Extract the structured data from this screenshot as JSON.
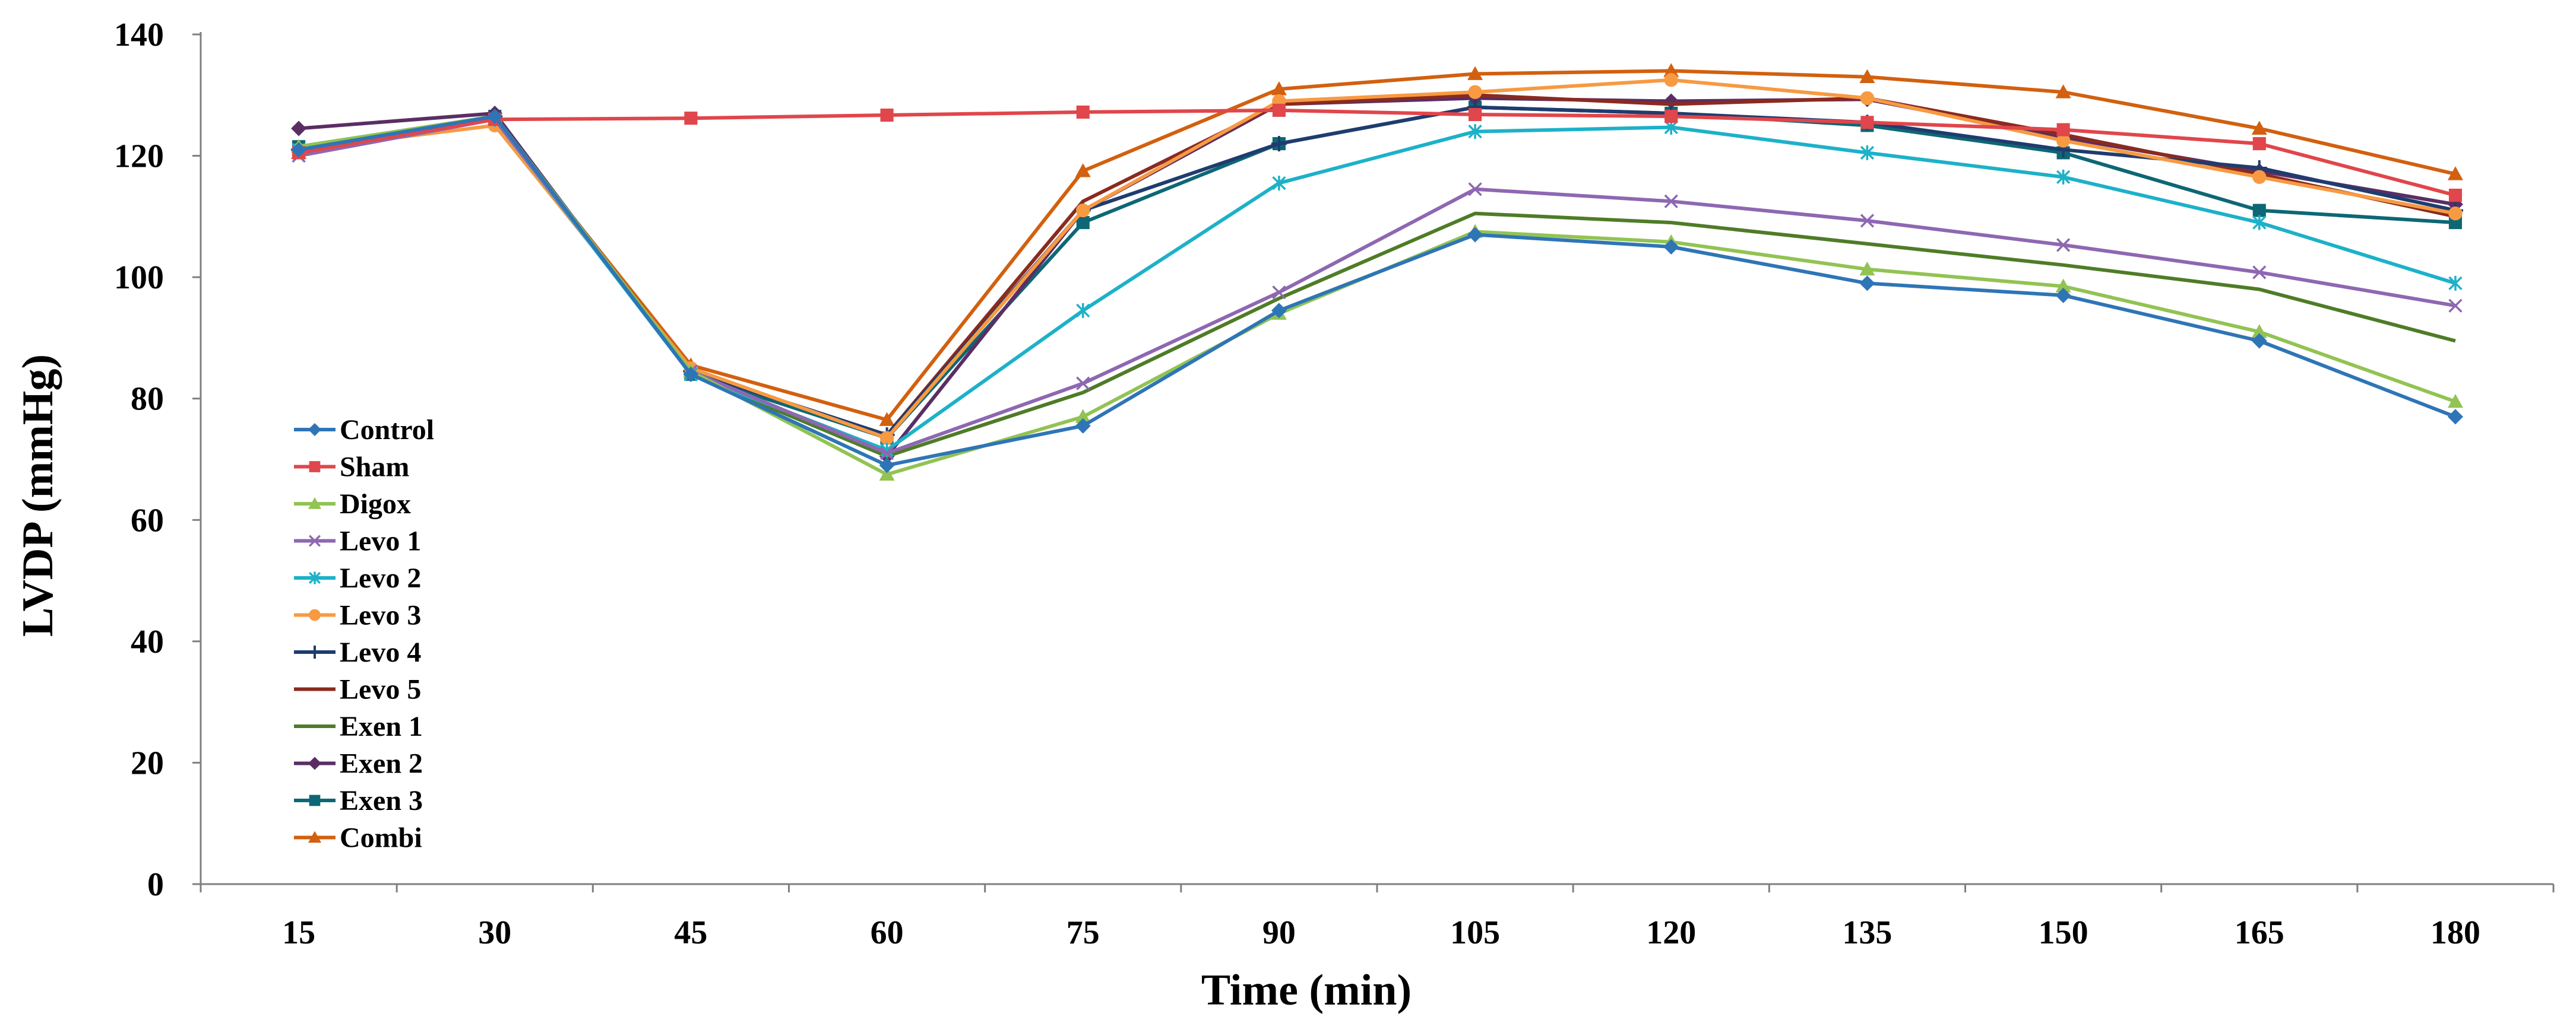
{
  "chart_data": {
    "type": "line",
    "title": "",
    "xlabel": "Time (min)",
    "ylabel": "LVDP (mmHg)",
    "x": [
      15,
      30,
      45,
      60,
      75,
      90,
      105,
      120,
      135,
      150,
      165,
      180
    ],
    "x_tick_labels": [
      "15",
      "30",
      "45",
      "60",
      "75",
      "90",
      "105",
      "120",
      "135",
      "150",
      "165",
      "180"
    ],
    "ylim": [
      0,
      140
    ],
    "y_ticks": [
      0,
      20,
      40,
      60,
      80,
      100,
      120,
      140
    ],
    "y_tick_labels": [
      "0",
      "20",
      "40",
      "60",
      "80",
      "100",
      "120",
      "140"
    ],
    "grid": false,
    "legend_position": "left",
    "series": [
      {
        "name": "Control",
        "color": "#2E75B6",
        "marker": "diamond",
        "values": [
          121,
          126.5,
          84,
          69,
          75.5,
          94.5,
          107,
          105,
          99,
          97,
          89.5,
          77
        ]
      },
      {
        "name": "Sham",
        "color": "#E0464B",
        "marker": "square",
        "values": [
          120.5,
          126,
          126.2,
          126.7,
          127.2,
          127.5,
          126.8,
          126.5,
          125.5,
          124.3,
          122,
          113.5
        ]
      },
      {
        "name": "Digox",
        "color": "#92C353",
        "marker": "triangle",
        "values": [
          121.5,
          126.5,
          84.5,
          67.5,
          77,
          94,
          107.5,
          105.8,
          101.3,
          98.5,
          91,
          79.5
        ]
      },
      {
        "name": "Levo 1",
        "color": "#8E67B2",
        "marker": "x",
        "values": [
          120,
          126,
          84.5,
          71,
          82.5,
          97.5,
          114.5,
          112.5,
          109.3,
          105.3,
          100.8,
          95.3
        ]
      },
      {
        "name": "Levo 2",
        "color": "#1DB1C9",
        "marker": "asterisk",
        "values": [
          121,
          126,
          84,
          71.5,
          94.5,
          115.5,
          124,
          124.7,
          120.5,
          116.5,
          109,
          99
        ]
      },
      {
        "name": "Levo 3",
        "color": "#F79A42",
        "marker": "circle",
        "values": [
          121,
          125,
          85,
          73.5,
          111,
          129,
          130.5,
          132.5,
          129.5,
          122.5,
          116.5,
          110.5
        ]
      },
      {
        "name": "Levo 4",
        "color": "#1F3C6E",
        "marker": "plus",
        "values": [
          121,
          126.5,
          84.5,
          74,
          111,
          122,
          128,
          127,
          125.5,
          121,
          118,
          111
        ]
      },
      {
        "name": "Levo 5",
        "color": "#8B2A1F",
        "marker": "none",
        "values": [
          121,
          126.5,
          84.5,
          74,
          112.5,
          128.5,
          130,
          128.5,
          129.5,
          123.5,
          117,
          110
        ]
      },
      {
        "name": "Exen 1",
        "color": "#4E7C27",
        "marker": "none",
        "values": [
          121.5,
          126.5,
          84,
          70.5,
          81,
          96.5,
          110.5,
          109,
          105.5,
          102,
          98,
          89.5
        ]
      },
      {
        "name": "Exen 2",
        "color": "#5A2E64",
        "marker": "diamond",
        "values": [
          124.5,
          127,
          84,
          70.5,
          111,
          128.5,
          129.5,
          129,
          129.3,
          123,
          117.5,
          112
        ]
      },
      {
        "name": "Exen 3",
        "color": "#0D6775",
        "marker": "square",
        "values": [
          121.5,
          126.5,
          84,
          73.5,
          109,
          122,
          128,
          127,
          125,
          120.5,
          111,
          109
        ]
      },
      {
        "name": "Combi",
        "color": "#D2600F",
        "marker": "triangle",
        "values": [
          120.5,
          126,
          85.5,
          76.5,
          117.5,
          131,
          133.5,
          134,
          133,
          130.5,
          124.5,
          117
        ]
      }
    ]
  }
}
